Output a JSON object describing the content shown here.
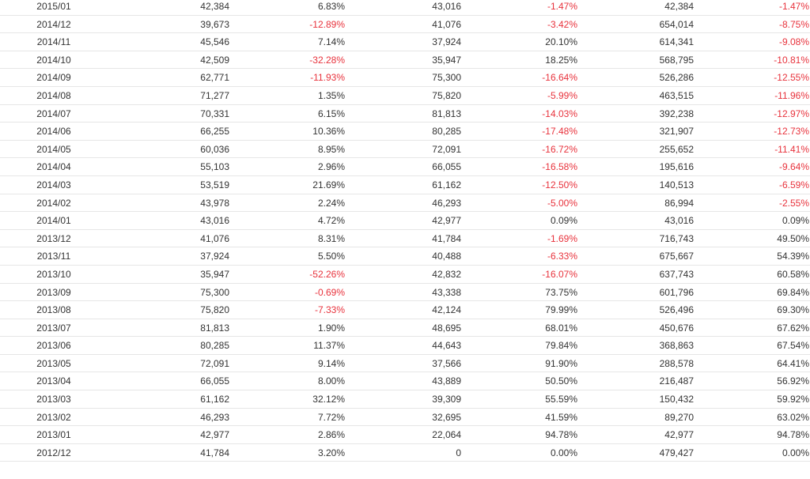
{
  "colors": {
    "text": "#333333",
    "negative": "#e8323c",
    "row_border": "#e6e6e6"
  },
  "rows": [
    [
      "2015/01",
      "42,384",
      "6.83%",
      "43,016",
      "-1.47%",
      "42,384",
      "-1.47%"
    ],
    [
      "2014/12",
      "39,673",
      "-12.89%",
      "41,076",
      "-3.42%",
      "654,014",
      "-8.75%"
    ],
    [
      "2014/11",
      "45,546",
      "7.14%",
      "37,924",
      "20.10%",
      "614,341",
      "-9.08%"
    ],
    [
      "2014/10",
      "42,509",
      "-32.28%",
      "35,947",
      "18.25%",
      "568,795",
      "-10.81%"
    ],
    [
      "2014/09",
      "62,771",
      "-11.93%",
      "75,300",
      "-16.64%",
      "526,286",
      "-12.55%"
    ],
    [
      "2014/08",
      "71,277",
      "1.35%",
      "75,820",
      "-5.99%",
      "463,515",
      "-11.96%"
    ],
    [
      "2014/07",
      "70,331",
      "6.15%",
      "81,813",
      "-14.03%",
      "392,238",
      "-12.97%"
    ],
    [
      "2014/06",
      "66,255",
      "10.36%",
      "80,285",
      "-17.48%",
      "321,907",
      "-12.73%"
    ],
    [
      "2014/05",
      "60,036",
      "8.95%",
      "72,091",
      "-16.72%",
      "255,652",
      "-11.41%"
    ],
    [
      "2014/04",
      "55,103",
      "2.96%",
      "66,055",
      "-16.58%",
      "195,616",
      "-9.64%"
    ],
    [
      "2014/03",
      "53,519",
      "21.69%",
      "61,162",
      "-12.50%",
      "140,513",
      "-6.59%"
    ],
    [
      "2014/02",
      "43,978",
      "2.24%",
      "46,293",
      "-5.00%",
      "86,994",
      "-2.55%"
    ],
    [
      "2014/01",
      "43,016",
      "4.72%",
      "42,977",
      "0.09%",
      "43,016",
      "0.09%"
    ],
    [
      "2013/12",
      "41,076",
      "8.31%",
      "41,784",
      "-1.69%",
      "716,743",
      "49.50%"
    ],
    [
      "2013/11",
      "37,924",
      "5.50%",
      "40,488",
      "-6.33%",
      "675,667",
      "54.39%"
    ],
    [
      "2013/10",
      "35,947",
      "-52.26%",
      "42,832",
      "-16.07%",
      "637,743",
      "60.58%"
    ],
    [
      "2013/09",
      "75,300",
      "-0.69%",
      "43,338",
      "73.75%",
      "601,796",
      "69.84%"
    ],
    [
      "2013/08",
      "75,820",
      "-7.33%",
      "42,124",
      "79.99%",
      "526,496",
      "69.30%"
    ],
    [
      "2013/07",
      "81,813",
      "1.90%",
      "48,695",
      "68.01%",
      "450,676",
      "67.62%"
    ],
    [
      "2013/06",
      "80,285",
      "11.37%",
      "44,643",
      "79.84%",
      "368,863",
      "67.54%"
    ],
    [
      "2013/05",
      "72,091",
      "9.14%",
      "37,566",
      "91.90%",
      "288,578",
      "64.41%"
    ],
    [
      "2013/04",
      "66,055",
      "8.00%",
      "43,889",
      "50.50%",
      "216,487",
      "56.92%"
    ],
    [
      "2013/03",
      "61,162",
      "32.12%",
      "39,309",
      "55.59%",
      "150,432",
      "59.92%"
    ],
    [
      "2013/02",
      "46,293",
      "7.72%",
      "32,695",
      "41.59%",
      "89,270",
      "63.02%"
    ],
    [
      "2013/01",
      "42,977",
      "2.86%",
      "22,064",
      "94.78%",
      "42,977",
      "94.78%"
    ],
    [
      "2012/12",
      "41,784",
      "3.20%",
      "0",
      "0.00%",
      "479,427",
      "0.00%"
    ]
  ]
}
